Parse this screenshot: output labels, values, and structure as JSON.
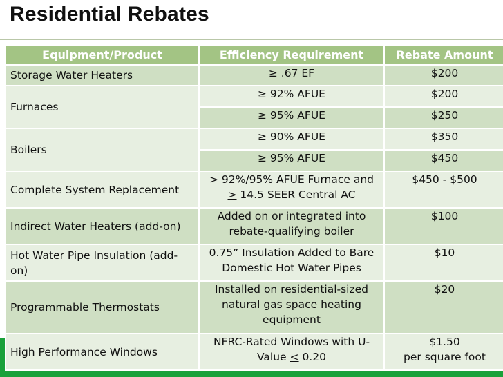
{
  "page": {
    "title": "Residential Rebates"
  },
  "colors": {
    "header_bg": "#a3c484",
    "row_dark": "#cfdfc3",
    "row_light": "#e7efe1",
    "footer_green": "#19a13a"
  },
  "table": {
    "headers": [
      "Equipment/Product",
      "Efficiency Requirement",
      "Rebate Amount"
    ],
    "rows": {
      "storage_water_heaters": {
        "equipment": "Storage Water Heaters",
        "requirement": "≥ .67 EF",
        "amount": "$200"
      },
      "furnaces": {
        "equipment": "Furnaces",
        "tiers": [
          {
            "requirement": "≥ 92% AFUE",
            "amount": "$200"
          },
          {
            "requirement": "≥ 95% AFUE",
            "amount": "$250"
          }
        ]
      },
      "boilers": {
        "equipment": "Boilers",
        "tiers": [
          {
            "requirement": "≥ 90% AFUE",
            "amount": "$350"
          },
          {
            "requirement": "≥ 95% AFUE",
            "amount": "$450"
          }
        ]
      },
      "complete_system": {
        "equipment": "Complete System Replacement",
        "req_line1_sym": ">",
        "req_line1_text": " 92%/95% AFUE Furnace and",
        "req_line2_sym": ">",
        "req_line2_text": " 14.5 SEER Central AC",
        "amount": "$450 - $500"
      },
      "indirect_water_heaters": {
        "equipment": "Indirect Water Heaters (add-on)",
        "requirement": "Added on or integrated into rebate-qualifying boiler",
        "amount": "$100"
      },
      "pipe_insulation": {
        "equipment": "Hot Water Pipe Insulation (add-on)",
        "requirement": "0.75” Insulation Added to Bare Domestic Hot Water Pipes",
        "amount": "$10"
      },
      "thermostats": {
        "equipment": "Programmable Thermostats",
        "requirement": "Installed on residential-sized natural gas space heating equipment",
        "amount": "$20"
      },
      "windows": {
        "equipment": "High Performance Windows",
        "req_text": "NFRC-Rated Windows with U-Value ",
        "req_sym": "<",
        "req_value": " 0.20",
        "amount_line1": "$1.50",
        "amount_line2": "per square foot"
      }
    }
  }
}
